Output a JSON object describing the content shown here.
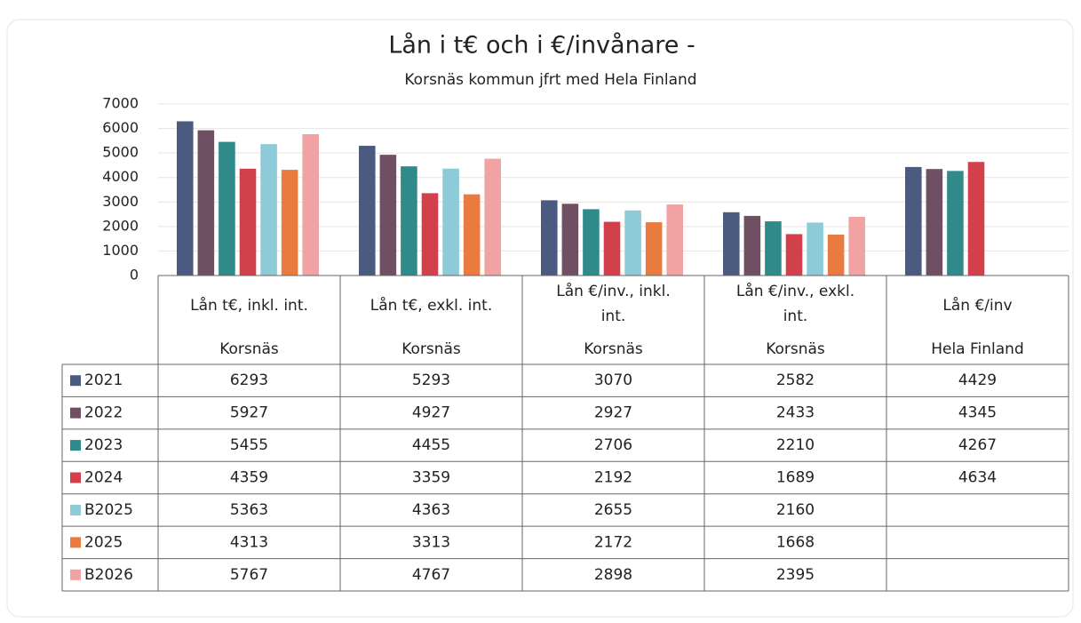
{
  "chart_data": {
    "type": "bar",
    "title": "Lån i t€ och i €/invånare -",
    "subtitle": "Korsnäs kommun jfrt med  Hela Finland",
    "categories": [
      [
        "Lån t€, inkl. int.",
        "Korsnäs"
      ],
      [
        "Lån t€, exkl. int.",
        "Korsnäs"
      ],
      [
        "Lån €/inv., inkl.",
        "int.",
        "Korsnäs"
      ],
      [
        "Lån €/inv., exkl.",
        "int.",
        "Korsnäs"
      ],
      [
        "Lån €/inv",
        "Hela Finland"
      ]
    ],
    "series": [
      {
        "name": "2021",
        "color": "#4b5a7f",
        "values": [
          6293,
          5293,
          3070,
          2582,
          4429
        ]
      },
      {
        "name": "2022",
        "color": "#6f5062",
        "values": [
          5927,
          4927,
          2927,
          2433,
          4345
        ]
      },
      {
        "name": "2023",
        "color": "#2f8a89",
        "values": [
          5455,
          4455,
          2706,
          2210,
          4267
        ]
      },
      {
        "name": "2024",
        "color": "#d1404b",
        "values": [
          4359,
          3359,
          2192,
          1689,
          4634
        ]
      },
      {
        "name": "B2025",
        "color": "#8ccbd7",
        "values": [
          5363,
          4363,
          2655,
          2160,
          null
        ]
      },
      {
        "name": "2025",
        "color": "#ea7b40",
        "values": [
          4313,
          3313,
          2172,
          1668,
          null
        ]
      },
      {
        "name": "B2026",
        "color": "#f1a2a2",
        "values": [
          5767,
          4767,
          2898,
          2395,
          null
        ]
      }
    ],
    "ylim": [
      0,
      7000
    ],
    "yticks": [
      0,
      1000,
      2000,
      3000,
      4000,
      5000,
      6000,
      7000
    ],
    "grid": true
  }
}
